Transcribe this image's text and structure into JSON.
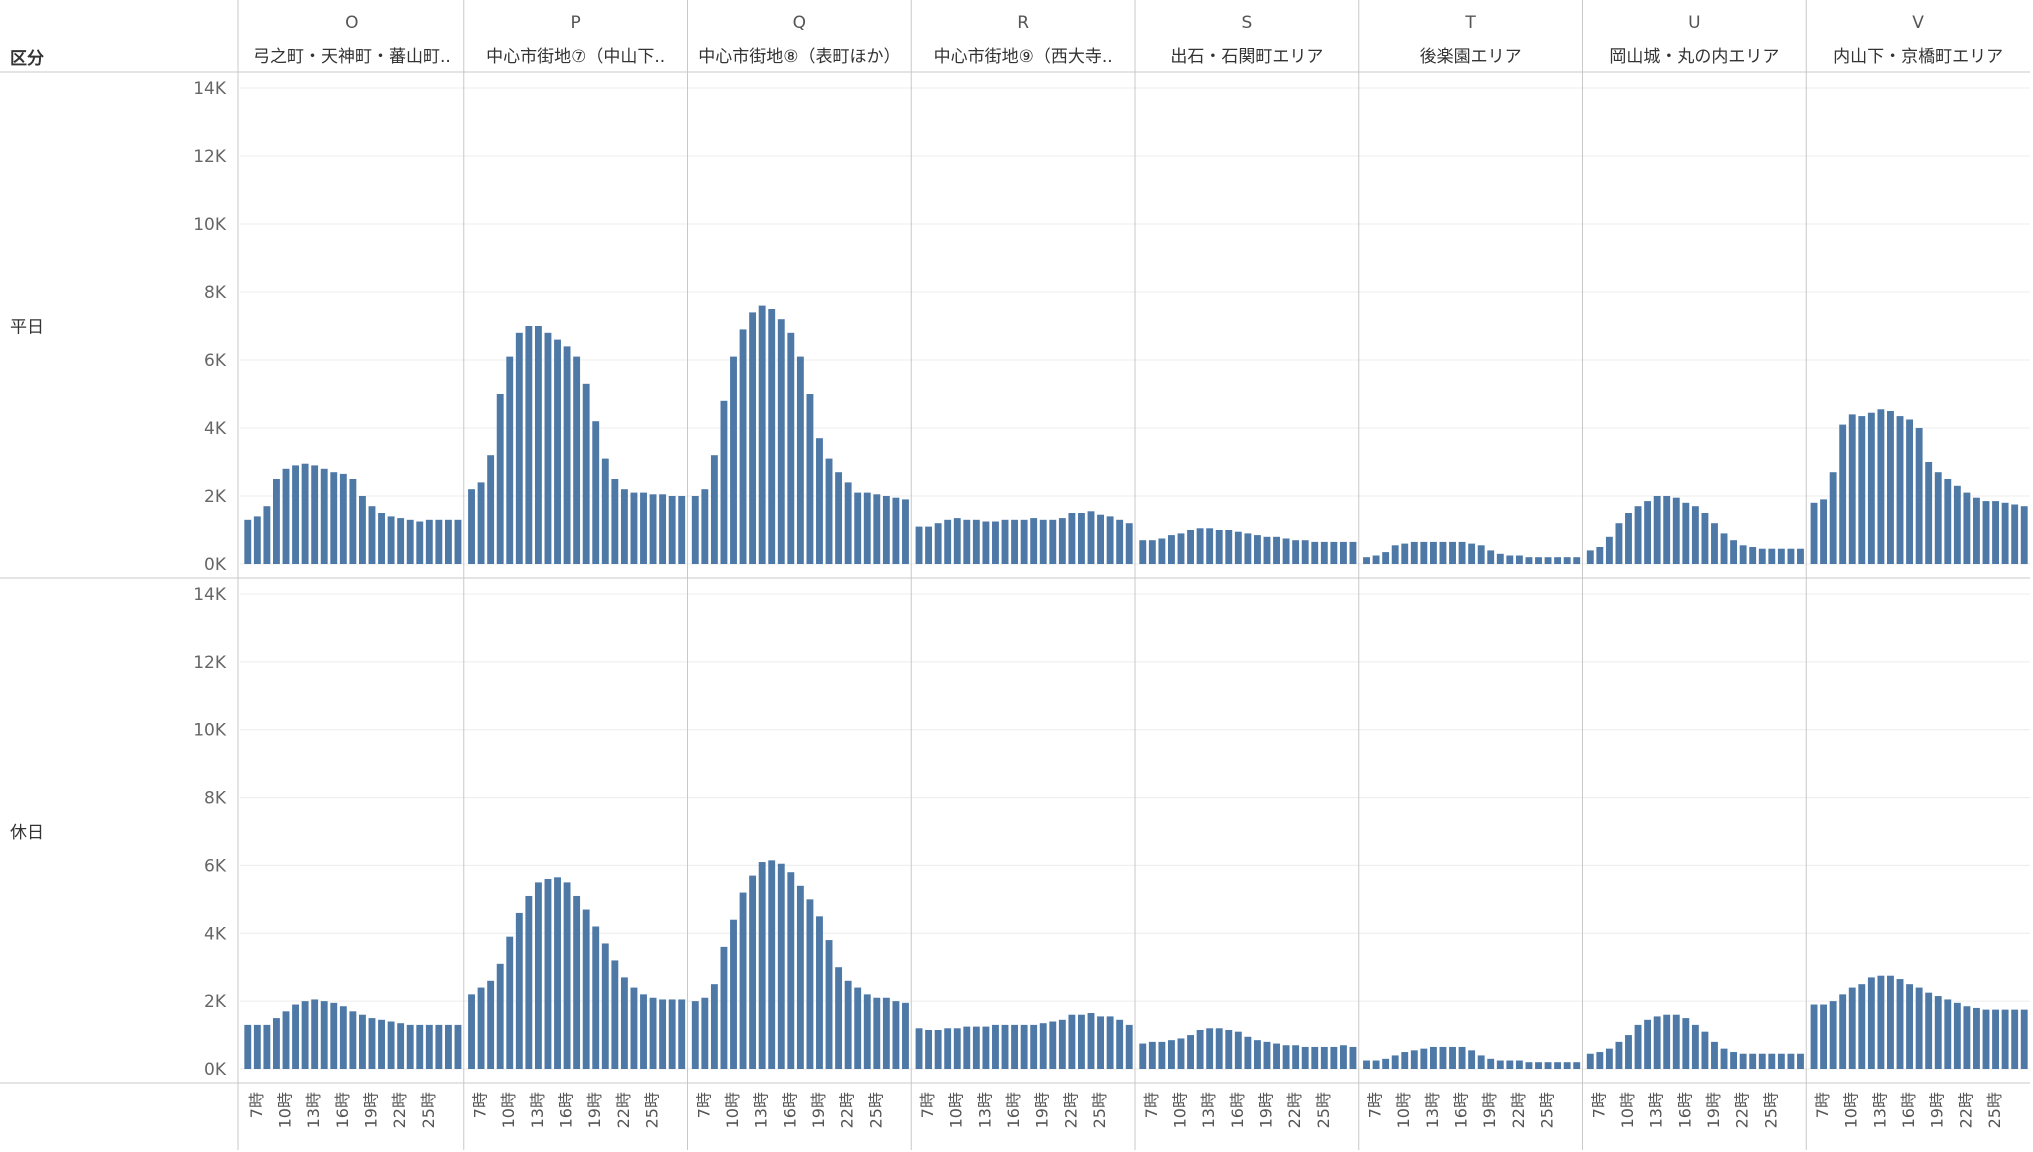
{
  "header": {
    "row_dim_label": "区分"
  },
  "chart_data": {
    "type": "bar",
    "ylim": [
      0,
      14000
    ],
    "y_ticks": [
      0,
      2000,
      4000,
      6000,
      8000,
      10000,
      12000,
      14000
    ],
    "y_tick_labels": [
      "0K",
      "2K",
      "4K",
      "6K",
      "8K",
      "10K",
      "12K",
      "14K"
    ],
    "hours": [
      6,
      7,
      8,
      9,
      10,
      11,
      12,
      13,
      14,
      15,
      16,
      17,
      18,
      19,
      20,
      21,
      22,
      23,
      24,
      25,
      26,
      27,
      28
    ],
    "x_tick_labels": [
      "7時",
      "10時",
      "13時",
      "16時",
      "19時",
      "22時",
      "25時"
    ],
    "x_tick_hours": [
      7,
      10,
      13,
      16,
      19,
      22,
      25
    ],
    "bar_color": "#4E79A7",
    "grid": true,
    "rows": [
      {
        "label": "平日"
      },
      {
        "label": "休日"
      }
    ],
    "panels": [
      {
        "code": "O",
        "name": "弓之町・天神町・蕃山町..",
        "weekday": [
          1300,
          1400,
          1700,
          2500,
          2800,
          2900,
          2950,
          2900,
          2800,
          2700,
          2650,
          2500,
          2000,
          1700,
          1500,
          1400,
          1350,
          1300,
          1250,
          1300,
          1300,
          1300,
          1300
        ],
        "holiday": [
          1300,
          1300,
          1300,
          1500,
          1700,
          1900,
          2000,
          2050,
          2000,
          1950,
          1850,
          1700,
          1600,
          1500,
          1450,
          1400,
          1350,
          1300,
          1300,
          1300,
          1300,
          1300,
          1300
        ]
      },
      {
        "code": "P",
        "name": "中心市街地⑦（中山下..",
        "weekday": [
          2200,
          2400,
          3200,
          5000,
          6100,
          6800,
          7000,
          7000,
          6800,
          6600,
          6400,
          6100,
          5300,
          4200,
          3100,
          2500,
          2200,
          2100,
          2100,
          2050,
          2050,
          2000,
          2000
        ],
        "holiday": [
          2200,
          2400,
          2600,
          3100,
          3900,
          4600,
          5100,
          5500,
          5600,
          5650,
          5500,
          5100,
          4700,
          4200,
          3700,
          3200,
          2700,
          2400,
          2200,
          2100,
          2050,
          2050,
          2050
        ]
      },
      {
        "code": "Q",
        "name": "中心市街地⑧（表町ほか）",
        "weekday": [
          2000,
          2200,
          3200,
          4800,
          6100,
          6900,
          7400,
          7600,
          7500,
          7200,
          6800,
          6100,
          5000,
          3700,
          3100,
          2700,
          2400,
          2100,
          2100,
          2050,
          2000,
          1950,
          1900
        ],
        "holiday": [
          2000,
          2100,
          2500,
          3600,
          4400,
          5200,
          5700,
          6100,
          6150,
          6050,
          5800,
          5400,
          5000,
          4500,
          3800,
          3000,
          2600,
          2400,
          2200,
          2100,
          2100,
          2000,
          1950
        ]
      },
      {
        "code": "R",
        "name": "中心市街地⑨（西大寺..",
        "weekday": [
          1100,
          1100,
          1200,
          1300,
          1350,
          1300,
          1300,
          1250,
          1250,
          1300,
          1300,
          1300,
          1350,
          1300,
          1300,
          1350,
          1500,
          1500,
          1550,
          1450,
          1400,
          1300,
          1200
        ],
        "holiday": [
          1200,
          1150,
          1150,
          1200,
          1200,
          1250,
          1250,
          1250,
          1300,
          1300,
          1300,
          1300,
          1300,
          1350,
          1400,
          1450,
          1600,
          1600,
          1650,
          1550,
          1550,
          1450,
          1300
        ]
      },
      {
        "code": "S",
        "name": "出石・石関町エリア",
        "weekday": [
          700,
          700,
          750,
          850,
          900,
          1000,
          1050,
          1050,
          1000,
          1000,
          950,
          900,
          850,
          800,
          800,
          750,
          700,
          700,
          650,
          650,
          650,
          650,
          650
        ],
        "holiday": [
          750,
          800,
          800,
          850,
          900,
          1000,
          1150,
          1200,
          1200,
          1150,
          1100,
          950,
          850,
          800,
          750,
          700,
          700,
          650,
          650,
          650,
          650,
          700,
          650
        ]
      },
      {
        "code": "T",
        "name": "後楽園エリア",
        "weekday": [
          200,
          250,
          350,
          550,
          600,
          650,
          650,
          650,
          650,
          650,
          650,
          600,
          550,
          400,
          300,
          250,
          250,
          200,
          200,
          200,
          200,
          200,
          200
        ],
        "holiday": [
          250,
          250,
          300,
          400,
          500,
          550,
          600,
          650,
          650,
          650,
          650,
          550,
          400,
          300,
          250,
          250,
          250,
          200,
          200,
          200,
          200,
          200,
          200
        ]
      },
      {
        "code": "U",
        "name": "岡山城・丸の内エリア",
        "weekday": [
          400,
          500,
          800,
          1200,
          1500,
          1700,
          1850,
          2000,
          2000,
          1950,
          1800,
          1700,
          1500,
          1200,
          900,
          700,
          550,
          500,
          450,
          450,
          450,
          450,
          450
        ],
        "holiday": [
          450,
          500,
          600,
          800,
          1000,
          1300,
          1450,
          1550,
          1600,
          1600,
          1500,
          1300,
          1100,
          800,
          600,
          500,
          450,
          450,
          450,
          450,
          450,
          450,
          450
        ]
      },
      {
        "code": "V",
        "name": "内山下・京橋町エリア",
        "weekday": [
          1800,
          1900,
          2700,
          4100,
          4400,
          4350,
          4450,
          4550,
          4500,
          4350,
          4250,
          4000,
          3000,
          2700,
          2500,
          2300,
          2100,
          1950,
          1850,
          1850,
          1800,
          1750,
          1700
        ],
        "holiday": [
          1900,
          1900,
          2000,
          2200,
          2400,
          2500,
          2700,
          2750,
          2750,
          2650,
          2500,
          2400,
          2250,
          2150,
          2050,
          1950,
          1850,
          1800,
          1750,
          1750,
          1750,
          1750,
          1750
        ]
      }
    ]
  }
}
